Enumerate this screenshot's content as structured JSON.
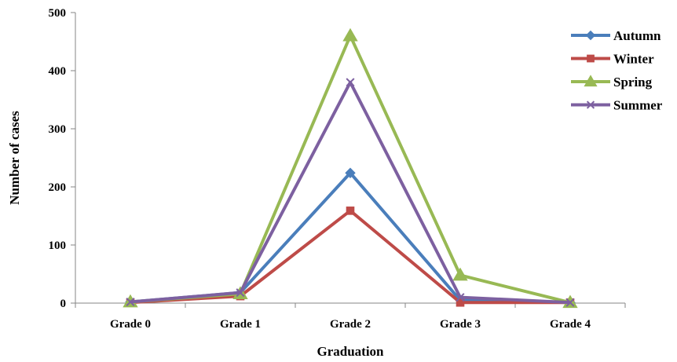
{
  "chart_data": {
    "type": "line",
    "title": "",
    "xlabel": "Graduation",
    "ylabel": "Number of cases",
    "categories": [
      "Grade 0",
      "Grade 1",
      "Grade 2",
      "Grade 3",
      "Grade 4"
    ],
    "ylim": [
      0,
      500
    ],
    "yticks": [
      "0",
      "100",
      "200",
      "300",
      "400",
      "500"
    ],
    "grid": false,
    "legend_position": "top-right",
    "series": [
      {
        "name": "Autumn",
        "color": "#4a7ebb",
        "marker": "diamond",
        "values": [
          2,
          18,
          224,
          5,
          1
        ]
      },
      {
        "name": "Winter",
        "color": "#be4b48",
        "marker": "square",
        "values": [
          1,
          12,
          159,
          1,
          1
        ]
      },
      {
        "name": "Spring",
        "color": "#98b954",
        "marker": "triangle",
        "values": [
          2,
          16,
          460,
          48,
          1
        ]
      },
      {
        "name": "Summer",
        "color": "#7d60a0",
        "marker": "x",
        "values": [
          2,
          18,
          380,
          10,
          1
        ]
      }
    ]
  }
}
